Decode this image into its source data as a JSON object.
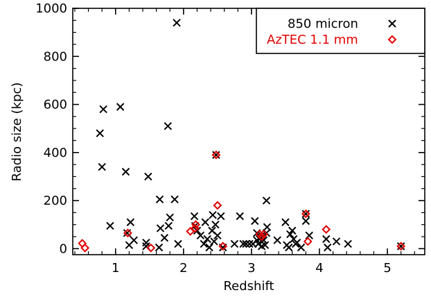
{
  "chart_data": {
    "type": "scatter",
    "xlabel": "Redshift",
    "ylabel": "Radio size (kpc)",
    "xlim": [
      0.37,
      5.55
    ],
    "ylim": [
      -25,
      1000
    ],
    "xticks": [
      1,
      2,
      3,
      4,
      5
    ],
    "yticks": [
      0,
      200,
      400,
      600,
      800,
      1000
    ],
    "grid": false,
    "legend_position": "top-right",
    "series": [
      {
        "name": "850 micron",
        "marker": "x",
        "color": "#000000",
        "points": [
          [
            0.77,
            480
          ],
          [
            0.8,
            340
          ],
          [
            0.82,
            580
          ],
          [
            0.92,
            95
          ],
          [
            1.07,
            590
          ],
          [
            1.15,
            320
          ],
          [
            1.17,
            65
          ],
          [
            1.22,
            110
          ],
          [
            1.2,
            15
          ],
          [
            1.27,
            35
          ],
          [
            1.45,
            25
          ],
          [
            1.45,
            10
          ],
          [
            1.48,
            300
          ],
          [
            1.64,
            5
          ],
          [
            1.65,
            205
          ],
          [
            1.66,
            85
          ],
          [
            1.72,
            45
          ],
          [
            1.77,
            510
          ],
          [
            1.8,
            130
          ],
          [
            1.78,
            95
          ],
          [
            1.87,
            205
          ],
          [
            1.9,
            940
          ],
          [
            1.92,
            20
          ],
          [
            2.16,
            135
          ],
          [
            2.17,
            95
          ],
          [
            2.2,
            75
          ],
          [
            2.25,
            55
          ],
          [
            2.3,
            20
          ],
          [
            2.32,
            110
          ],
          [
            2.35,
            40
          ],
          [
            2.38,
            5
          ],
          [
            2.42,
            75
          ],
          [
            2.43,
            140
          ],
          [
            2.45,
            30
          ],
          [
            2.47,
            100
          ],
          [
            2.48,
            390
          ],
          [
            2.5,
            55
          ],
          [
            2.55,
            135
          ],
          [
            2.58,
            5
          ],
          [
            2.75,
            20
          ],
          [
            2.83,
            135
          ],
          [
            2.88,
            20
          ],
          [
            2.92,
            20
          ],
          [
            2.97,
            20
          ],
          [
            3.02,
            20
          ],
          [
            3.05,
            115
          ],
          [
            3.08,
            65
          ],
          [
            3.08,
            35
          ],
          [
            3.1,
            20
          ],
          [
            3.12,
            40
          ],
          [
            3.15,
            55
          ],
          [
            3.15,
            10
          ],
          [
            3.18,
            35
          ],
          [
            3.2,
            15
          ],
          [
            3.22,
            200
          ],
          [
            3.22,
            65
          ],
          [
            3.23,
            90
          ],
          [
            3.38,
            35
          ],
          [
            3.5,
            110
          ],
          [
            3.52,
            15
          ],
          [
            3.55,
            5
          ],
          [
            3.57,
            60
          ],
          [
            3.6,
            75
          ],
          [
            3.62,
            40
          ],
          [
            3.65,
            20
          ],
          [
            3.67,
            25
          ],
          [
            3.73,
            5
          ],
          [
            3.8,
            145
          ],
          [
            3.8,
            115
          ],
          [
            3.85,
            55
          ],
          [
            4.1,
            40
          ],
          [
            4.12,
            5
          ],
          [
            4.25,
            30
          ],
          [
            4.42,
            20
          ],
          [
            5.2,
            10
          ]
        ]
      },
      {
        "name": "AzTEC 1.1 mm",
        "marker": "diamond",
        "color": "#e00000",
        "points": [
          [
            0.51,
            22
          ],
          [
            0.55,
            3
          ],
          [
            1.18,
            65
          ],
          [
            1.52,
            3
          ],
          [
            2.1,
            72
          ],
          [
            2.17,
            85
          ],
          [
            2.18,
            100
          ],
          [
            2.48,
            390
          ],
          [
            2.5,
            180
          ],
          [
            2.58,
            10
          ],
          [
            3.12,
            60
          ],
          [
            3.15,
            50
          ],
          [
            3.18,
            60
          ],
          [
            3.8,
            145
          ],
          [
            3.83,
            30
          ],
          [
            4.1,
            80
          ],
          [
            5.2,
            10
          ]
        ]
      }
    ]
  }
}
